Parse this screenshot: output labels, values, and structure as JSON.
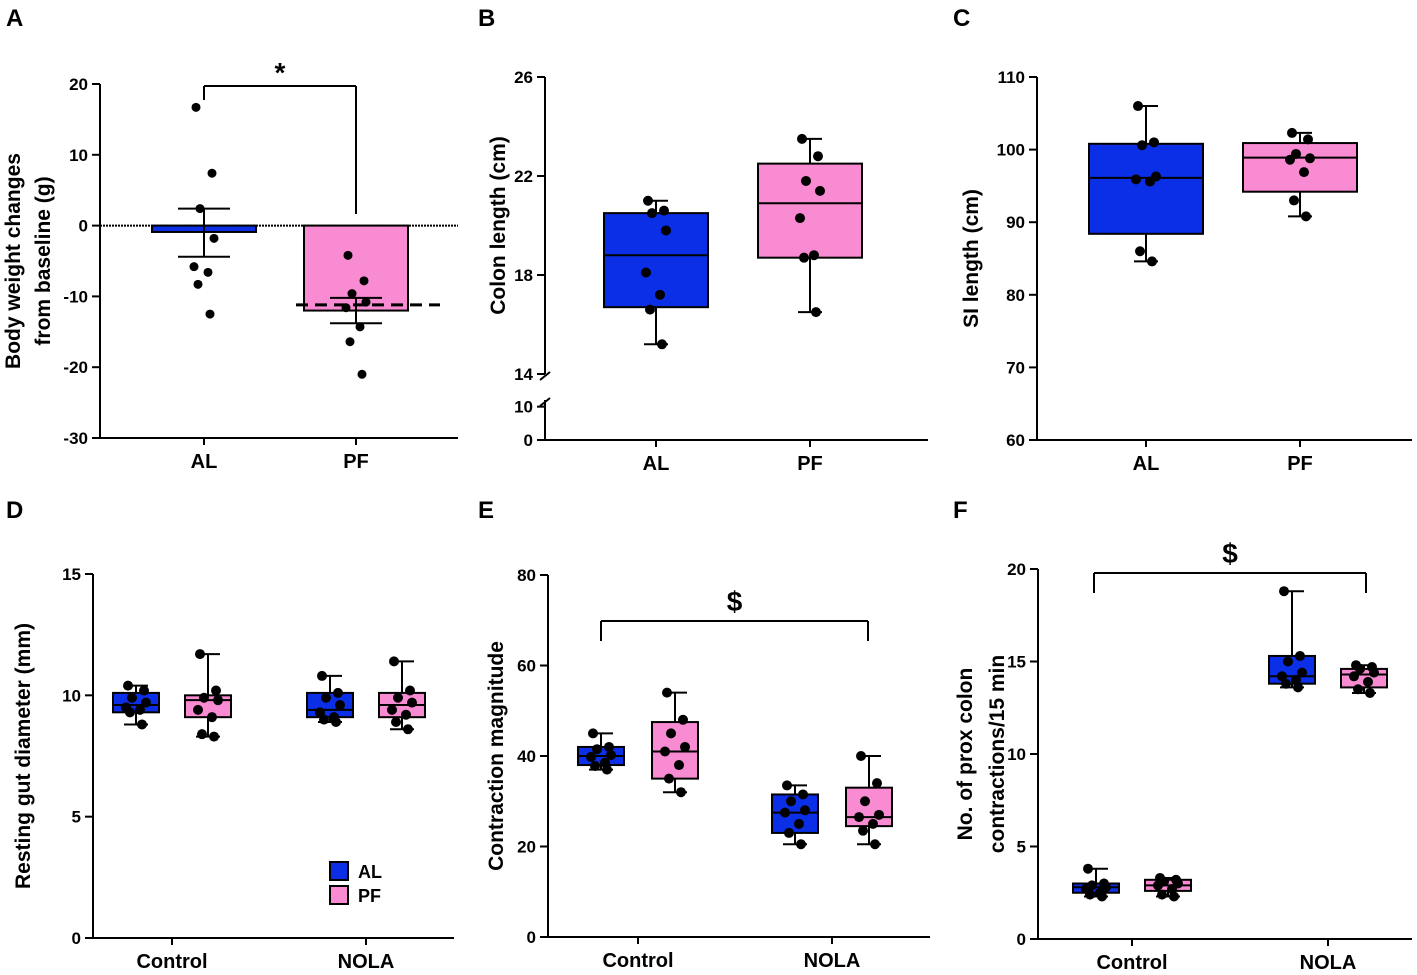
{
  "colors": {
    "AL": "#0a2fe6",
    "PF": "#f98bd2",
    "line": "#000000"
  },
  "legend": {
    "items": [
      {
        "label": "AL",
        "group": "AL"
      },
      {
        "label": "PF",
        "group": "PF"
      }
    ]
  },
  "chart_data": [
    {
      "panel": "A",
      "type": "bar",
      "ylabel": "Body weight  changes\nfrom baseline (g)",
      "ylim": [
        -30,
        20
      ],
      "yticks": [
        20,
        10,
        0,
        -10,
        -20,
        -30
      ],
      "categories": [
        "AL",
        "PF"
      ],
      "bars": [
        {
          "group": "AL",
          "mean": -0.9,
          "sem_low": -4.4,
          "sem_high": 2.4,
          "points": [
            16.7,
            7.4,
            2.4,
            -1.8,
            -5.8,
            -6.6,
            -8.3,
            -12.5
          ]
        },
        {
          "group": "PF",
          "mean": -12.0,
          "sem_low": -13.8,
          "sem_high": -10.2,
          "points": [
            -4.2,
            -7.8,
            -9.6,
            -10.8,
            -11.6,
            -14.3,
            -16.4,
            -21.0
          ]
        }
      ],
      "reference_line": -11.2,
      "annotation": {
        "text": "*",
        "from": "AL",
        "to": "PF"
      }
    },
    {
      "panel": "B",
      "type": "box",
      "ylabel": "Colon length (cm)",
      "yticks_upper": [
        14,
        18,
        22,
        26
      ],
      "yticks_lower": [
        0,
        10
      ],
      "ylim_upper": [
        14,
        26
      ],
      "ylim_lower": [
        0,
        12
      ],
      "categories": [
        "AL",
        "PF"
      ],
      "boxes": [
        {
          "group": "AL",
          "min": 15.2,
          "q1": 16.7,
          "median": 18.8,
          "q3": 20.5,
          "max": 21.0,
          "points": [
            21.0,
            20.6,
            20.5,
            19.8,
            18.1,
            17.2,
            16.6,
            15.2
          ]
        },
        {
          "group": "PF",
          "min": 16.5,
          "q1": 18.7,
          "median": 20.9,
          "q3": 22.5,
          "max": 23.5,
          "points": [
            23.5,
            22.8,
            21.8,
            21.4,
            20.3,
            18.8,
            18.7,
            16.5
          ]
        }
      ]
    },
    {
      "panel": "C",
      "type": "box",
      "ylabel": "SI length (cm)",
      "ylim": [
        60,
        110
      ],
      "yticks": [
        60,
        70,
        80,
        90,
        100,
        110
      ],
      "categories": [
        "AL",
        "PF"
      ],
      "boxes": [
        {
          "group": "AL",
          "min": 84.6,
          "q1": 88.4,
          "median": 96.1,
          "q3": 100.8,
          "max": 106.0,
          "points": [
            106.0,
            101.0,
            100.6,
            96.3,
            95.9,
            95.6,
            86.0,
            84.6
          ]
        },
        {
          "group": "PF",
          "min": 90.8,
          "q1": 94.2,
          "median": 98.9,
          "q3": 100.9,
          "max": 102.3,
          "points": [
            102.3,
            101.4,
            99.4,
            98.8,
            98.6,
            96.9,
            93.0,
            90.8
          ]
        }
      ]
    },
    {
      "panel": "D",
      "type": "box",
      "ylabel": "Resting gut diameter (mm)",
      "ylim": [
        0,
        15
      ],
      "yticks": [
        0,
        5,
        10,
        15
      ],
      "categories": [
        "Control",
        "NOLA"
      ],
      "boxes": [
        {
          "category": "Control",
          "group": "AL",
          "min": 8.8,
          "q1": 9.3,
          "median": 9.6,
          "q3": 10.1,
          "max": 10.4,
          "points": [
            10.4,
            10.2,
            9.9,
            9.7,
            9.5,
            9.4,
            9.3,
            8.8
          ]
        },
        {
          "category": "Control",
          "group": "PF",
          "min": 8.3,
          "q1": 9.1,
          "median": 9.8,
          "q3": 10.0,
          "max": 11.7,
          "points": [
            11.7,
            10.2,
            9.9,
            9.8,
            9.4,
            9.1,
            8.4,
            8.3
          ]
        },
        {
          "category": "NOLA",
          "group": "AL",
          "min": 8.9,
          "q1": 9.1,
          "median": 9.4,
          "q3": 10.1,
          "max": 10.8,
          "points": [
            10.8,
            10.1,
            9.9,
            9.6,
            9.3,
            9.1,
            9.0,
            8.9
          ]
        },
        {
          "category": "NOLA",
          "group": "PF",
          "min": 8.6,
          "q1": 9.1,
          "median": 9.6,
          "q3": 10.1,
          "max": 11.4,
          "points": [
            11.4,
            10.2,
            9.9,
            9.7,
            9.4,
            9.2,
            8.9,
            8.6
          ]
        }
      ]
    },
    {
      "panel": "E",
      "type": "box",
      "ylabel": "Contraction magnitude",
      "ylim": [
        0,
        80
      ],
      "yticks": [
        0,
        20,
        40,
        60,
        80
      ],
      "categories": [
        "Control",
        "NOLA"
      ],
      "boxes": [
        {
          "category": "Control",
          "group": "AL",
          "min": 37.0,
          "q1": 38.0,
          "median": 40.0,
          "q3": 42.0,
          "max": 45.0,
          "points": [
            45.0,
            42.0,
            41.5,
            40.2,
            39.8,
            38.5,
            37.8,
            37.0
          ]
        },
        {
          "category": "Control",
          "group": "PF",
          "min": 32.0,
          "q1": 35.0,
          "median": 41.0,
          "q3": 47.5,
          "max": 54.0,
          "points": [
            54.0,
            48.0,
            45.0,
            42.0,
            41.0,
            38.0,
            35.0,
            32.0
          ]
        },
        {
          "category": "NOLA",
          "group": "AL",
          "min": 20.5,
          "q1": 23.0,
          "median": 27.5,
          "q3": 31.5,
          "max": 33.5,
          "points": [
            33.5,
            31.5,
            30.0,
            28.0,
            27.5,
            25.0,
            23.0,
            20.5
          ]
        },
        {
          "category": "NOLA",
          "group": "PF",
          "min": 20.5,
          "q1": 24.5,
          "median": 26.5,
          "q3": 33.0,
          "max": 40.0,
          "points": [
            40.0,
            34.0,
            30.0,
            27.0,
            26.5,
            25.0,
            23.5,
            20.5
          ]
        }
      ],
      "annotation": {
        "text": "$",
        "from": "Control",
        "to": "NOLA"
      }
    },
    {
      "panel": "F",
      "type": "box",
      "ylabel": "No. of prox colon\ncontractions/15 min",
      "ylim": [
        0,
        20
      ],
      "yticks": [
        0,
        5,
        10,
        15,
        20
      ],
      "categories": [
        "Control",
        "NOLA"
      ],
      "boxes": [
        {
          "category": "Control",
          "group": "AL",
          "min": 2.3,
          "q1": 2.5,
          "median": 2.8,
          "q3": 3.0,
          "max": 3.8,
          "points": [
            3.8,
            3.0,
            2.9,
            2.8,
            2.7,
            2.5,
            2.4,
            2.3
          ]
        },
        {
          "category": "Control",
          "group": "PF",
          "min": 2.3,
          "q1": 2.6,
          "median": 2.9,
          "q3": 3.2,
          "max": 3.3,
          "points": [
            3.3,
            3.2,
            3.1,
            3.0,
            2.9,
            2.7,
            2.4,
            2.3
          ]
        },
        {
          "category": "NOLA",
          "group": "AL",
          "min": 13.6,
          "q1": 13.8,
          "median": 14.2,
          "q3": 15.3,
          "max": 18.8,
          "points": [
            18.8,
            15.3,
            15.0,
            14.4,
            14.2,
            14.0,
            13.8,
            13.6
          ]
        },
        {
          "category": "NOLA",
          "group": "PF",
          "min": 13.3,
          "q1": 13.6,
          "median": 14.3,
          "q3": 14.6,
          "max": 14.8,
          "points": [
            14.8,
            14.7,
            14.6,
            14.4,
            14.2,
            13.9,
            13.5,
            13.3
          ]
        }
      ],
      "annotation": {
        "text": "$",
        "from": "Control",
        "to": "NOLA"
      }
    }
  ]
}
